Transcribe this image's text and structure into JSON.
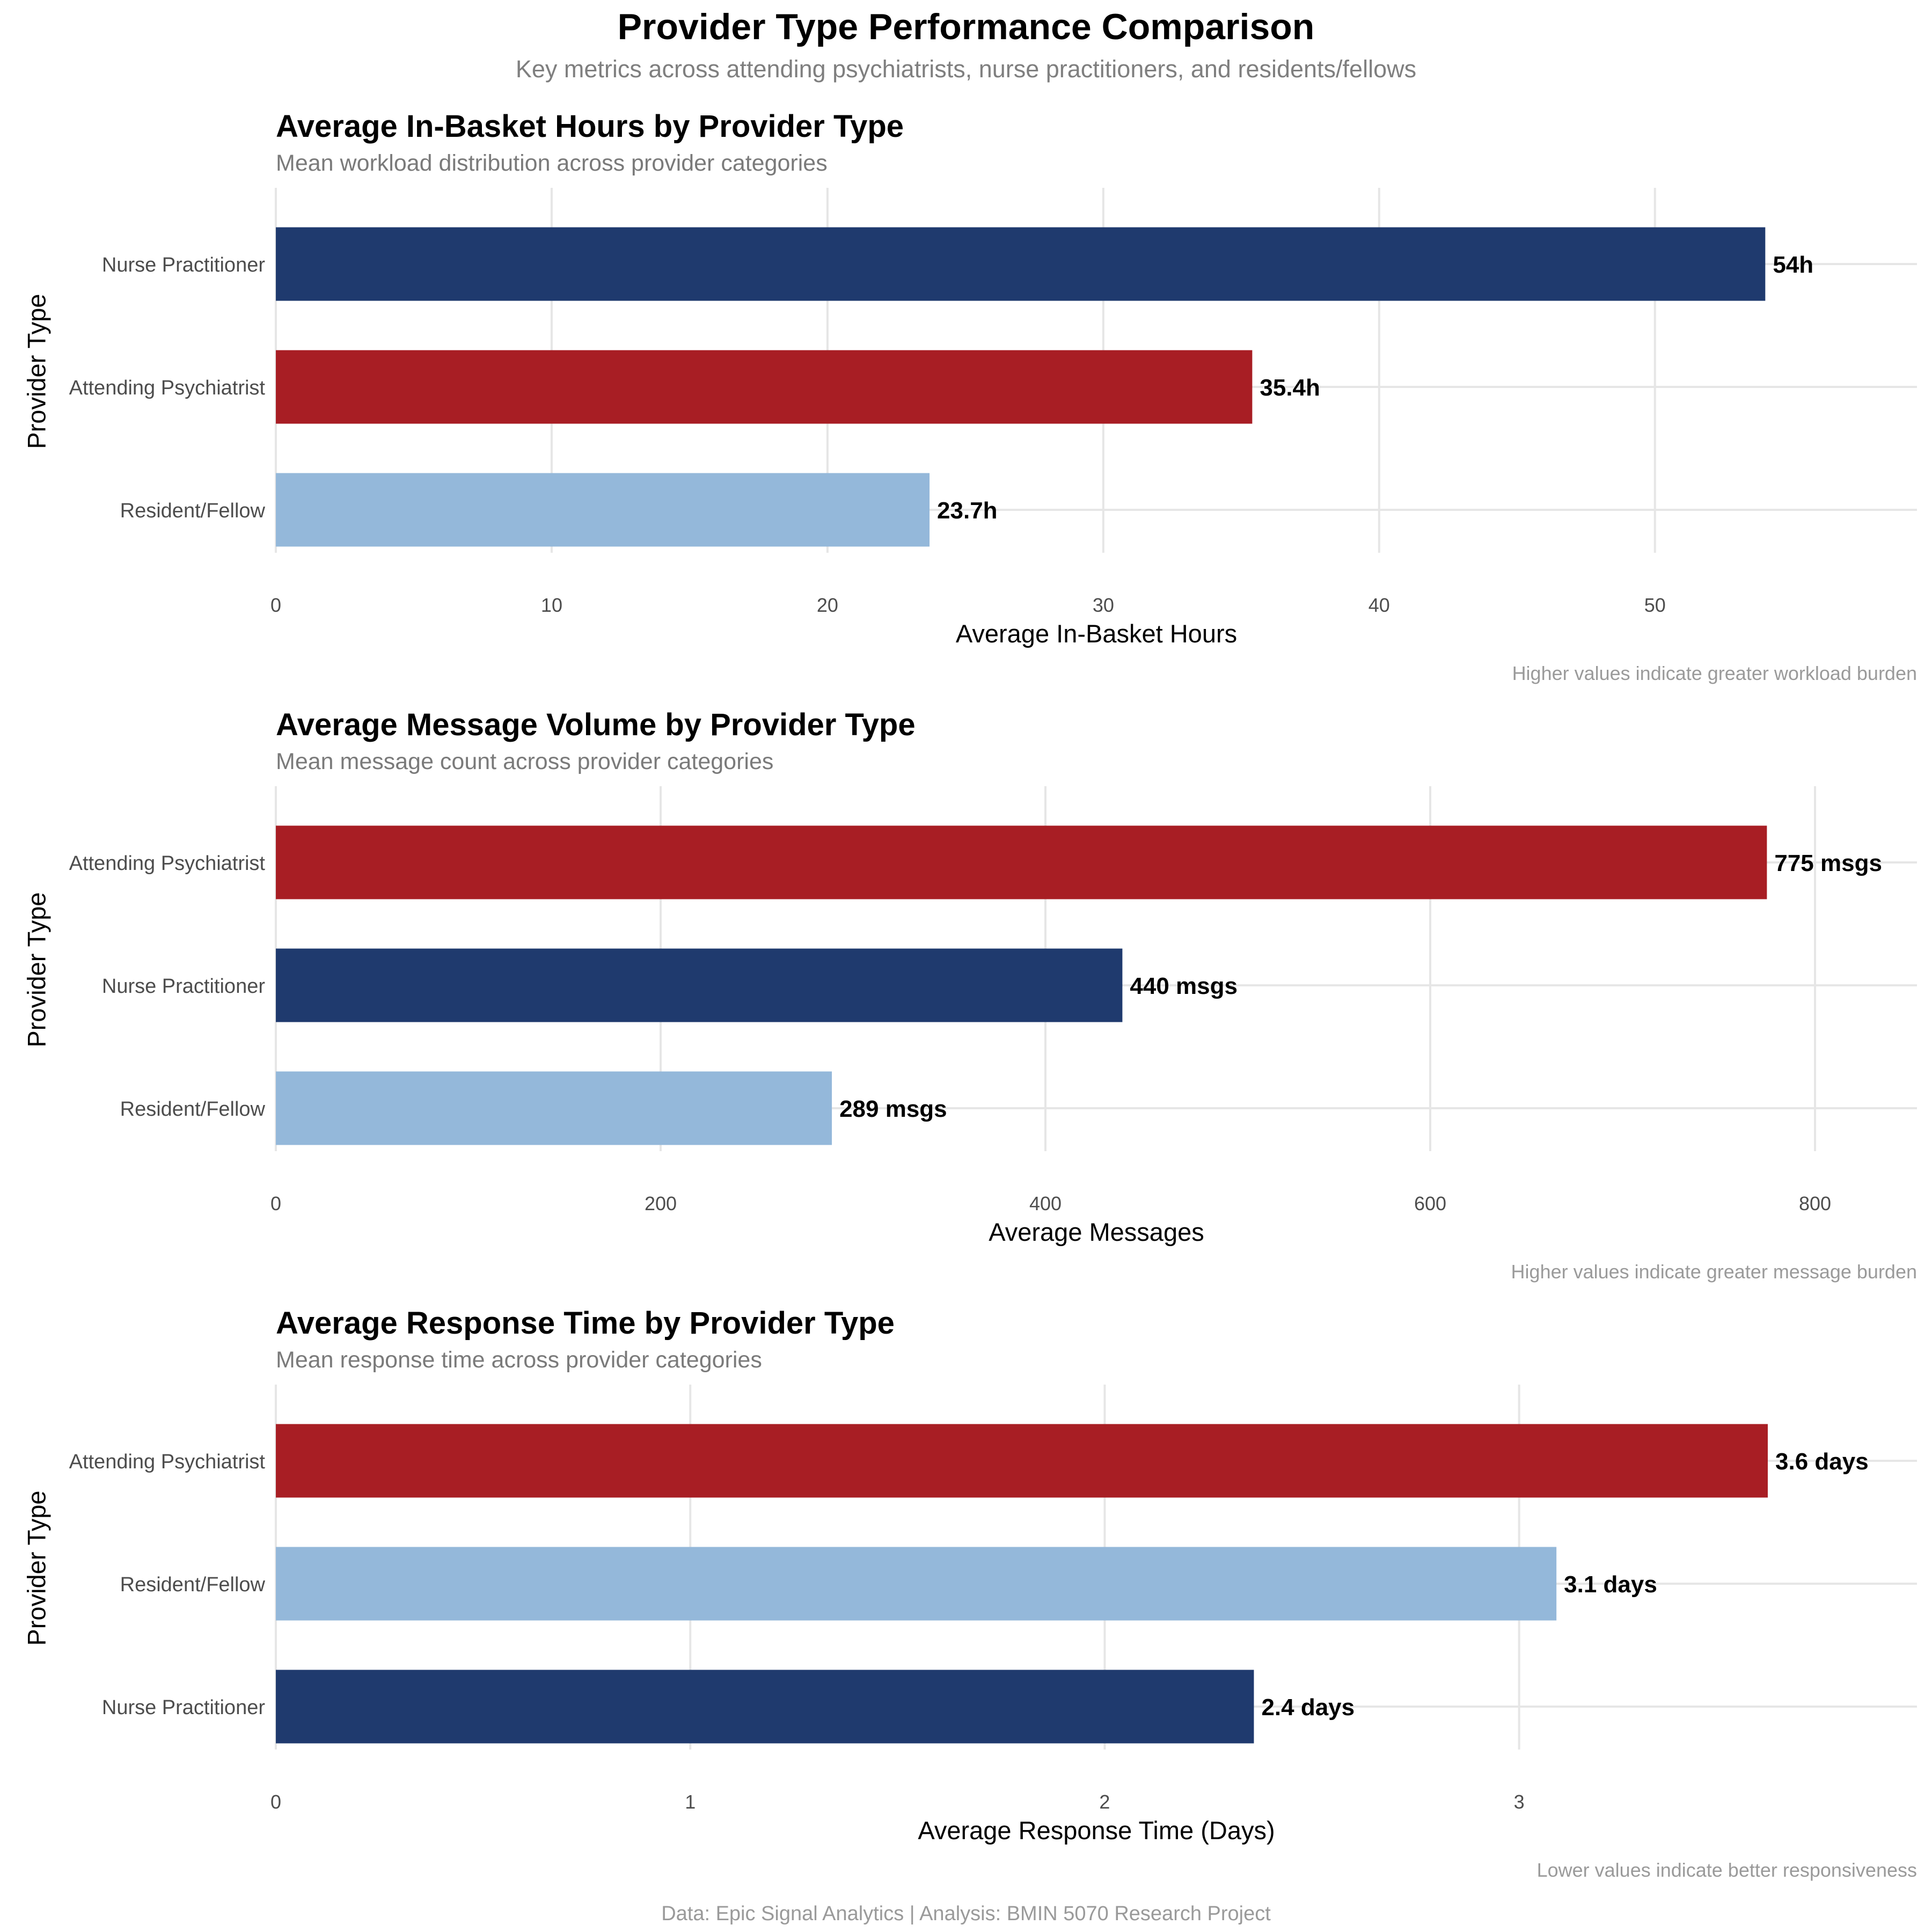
{
  "title": "Provider Type Performance Comparison",
  "subtitle": "Key metrics across attending psychiatrists, nurse practitioners, and residents/fellows",
  "caption": "Data: Epic Signal Analytics | Analysis: BMIN 5070 Research Project",
  "colors": {
    "Attending Psychiatrist": "#a81e24",
    "Nurse Practitioner": "#1f3a6e",
    "Resident/Fellow": "#94b8da",
    "grid": "#e6e6e6"
  },
  "chart_data": [
    {
      "type": "bar",
      "orientation": "horizontal",
      "title": "Average In-Basket Hours by Provider Type",
      "subtitle": "Mean workload distribution across provider categories",
      "xlabel": "Average In-Basket Hours",
      "ylabel": "Provider Type",
      "note": "Higher values indicate greater workload burden",
      "categories": [
        "Nurse Practitioner",
        "Attending Psychiatrist",
        "Resident/Fellow"
      ],
      "values": [
        54,
        35.4,
        23.7
      ],
      "data_labels": [
        "54h",
        "35.4h",
        "23.7h"
      ],
      "xlim": [
        0,
        59.5
      ],
      "xticks": [
        0,
        10,
        20,
        30,
        40,
        50
      ],
      "grid": true
    },
    {
      "type": "bar",
      "orientation": "horizontal",
      "title": "Average Message Volume by Provider Type",
      "subtitle": "Mean message count across provider categories",
      "xlabel": "Average Messages",
      "ylabel": "Provider Type",
      "note": "Higher values indicate greater message burden",
      "categories": [
        "Attending Psychiatrist",
        "Nurse Practitioner",
        "Resident/Fellow"
      ],
      "values": [
        775,
        440,
        289
      ],
      "data_labels": [
        "775 msgs",
        "440 msgs",
        "289 msgs"
      ],
      "xlim": [
        0,
        853
      ],
      "xticks": [
        0,
        200,
        400,
        600,
        800
      ],
      "grid": true
    },
    {
      "type": "bar",
      "orientation": "horizontal",
      "title": "Average Response Time by Provider Type",
      "subtitle": "Mean response time across provider categories",
      "xlabel": "Average Response Time (Days)",
      "ylabel": "Provider Type",
      "note": "Lower values indicate better responsiveness",
      "categories": [
        "Attending Psychiatrist",
        "Resident/Fellow",
        "Nurse Practitioner"
      ],
      "values": [
        3.6,
        3.09,
        2.36
      ],
      "data_labels": [
        "3.6 days",
        "3.1 days",
        "2.4 days"
      ],
      "xlim": [
        0,
        3.96
      ],
      "xticks": [
        0,
        1,
        2,
        3
      ],
      "grid": true
    }
  ]
}
